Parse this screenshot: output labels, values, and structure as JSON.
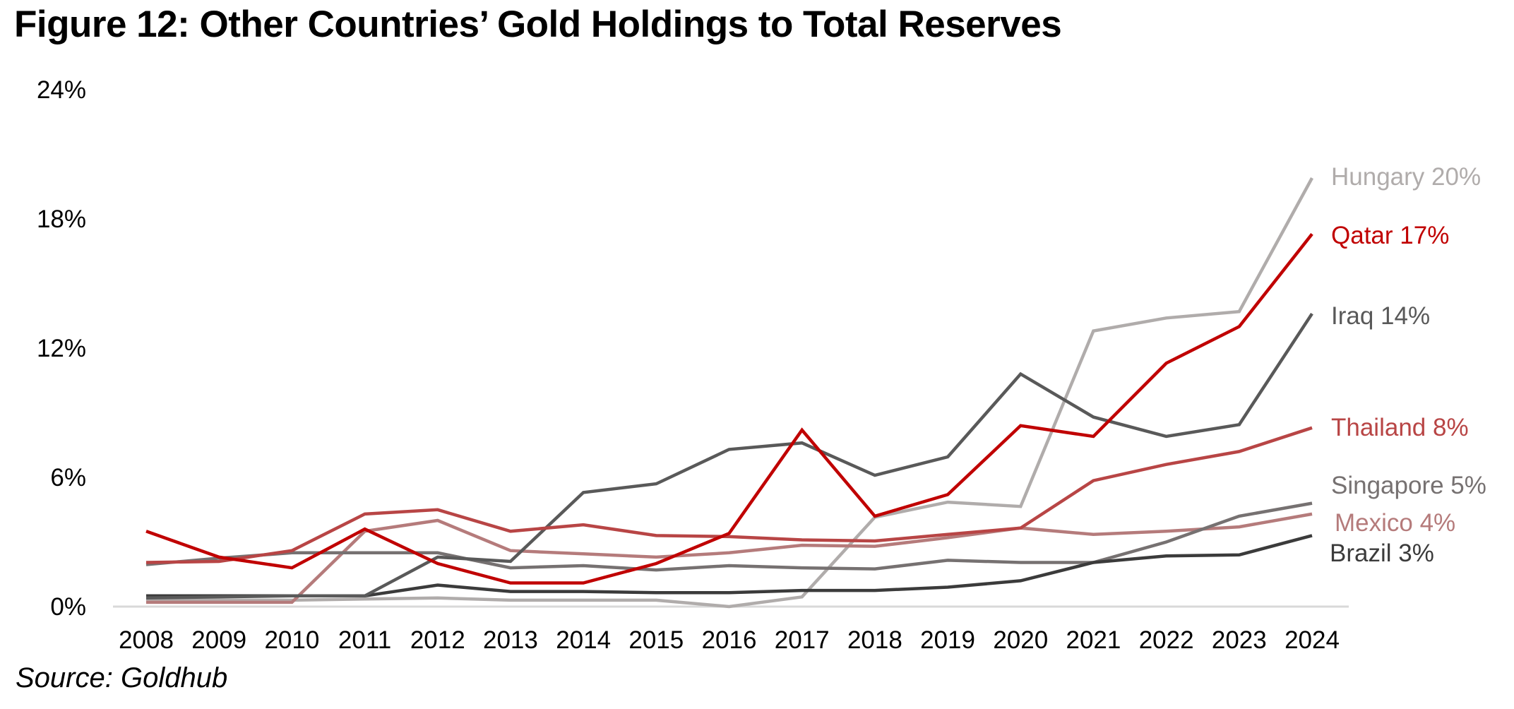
{
  "title": "Figure 12: Other Countries’ Gold Holdings to Total Reserves",
  "source": "Source: Goldhub",
  "chart_data": {
    "type": "line",
    "title": "Figure 12: Other Countries’ Gold Holdings to Total Reserves",
    "xlabel": "",
    "ylabel": "",
    "x": [
      "2008",
      "2009",
      "2010",
      "2011",
      "2012",
      "2013",
      "2014",
      "2015",
      "2016",
      "2017",
      "2018",
      "2019",
      "2020",
      "2021",
      "2022",
      "2023",
      "2024"
    ],
    "ylim": [
      0,
      24
    ],
    "yticks": [
      0,
      6,
      12,
      18,
      24
    ],
    "ytick_labels": [
      "0%",
      "6%",
      "12%",
      "18%",
      "24%"
    ],
    "grid": false,
    "legend": "end-of-line labels (right)",
    "series": [
      {
        "name": "Hungary",
        "end_label": "Hungary 20%",
        "color": "#b0acab",
        "values": [
          0.3,
          0.3,
          0.3,
          0.35,
          0.4,
          0.3,
          0.3,
          0.3,
          0.0,
          0.45,
          4.15,
          4.85,
          4.65,
          12.8,
          13.4,
          13.7,
          19.9
        ]
      },
      {
        "name": "Qatar",
        "end_label": "Qatar 17%",
        "color": "#c00000",
        "values": [
          3.5,
          2.3,
          1.8,
          3.6,
          2.0,
          1.1,
          1.1,
          2.0,
          3.4,
          8.2,
          4.2,
          5.2,
          8.4,
          7.9,
          11.3,
          13.0,
          17.3
        ]
      },
      {
        "name": "Iraq",
        "end_label": "Iraq 14%",
        "color": "#595959",
        "values": [
          0.4,
          0.45,
          0.5,
          0.5,
          2.3,
          2.1,
          5.3,
          5.7,
          7.3,
          7.6,
          6.1,
          6.95,
          10.8,
          8.8,
          7.9,
          8.45,
          13.6
        ]
      },
      {
        "name": "Thailand",
        "end_label": "Thailand 8%",
        "color": "#b84545",
        "values": [
          2.05,
          2.1,
          2.6,
          4.3,
          4.5,
          3.5,
          3.8,
          3.3,
          3.25,
          3.1,
          3.05,
          3.35,
          3.65,
          5.85,
          6.6,
          7.2,
          8.3
        ]
      },
      {
        "name": "Singapore",
        "end_label": "Singapore 5%",
        "color": "#767171",
        "values": [
          1.95,
          2.25,
          2.5,
          2.5,
          2.5,
          1.8,
          1.9,
          1.7,
          1.9,
          1.8,
          1.75,
          2.15,
          2.05,
          2.05,
          3.0,
          4.2,
          4.8
        ]
      },
      {
        "name": "Mexico",
        "end_label": "Mexico 4%",
        "color": "#b57b7b",
        "values": [
          0.2,
          0.2,
          0.2,
          3.5,
          4.0,
          2.6,
          2.45,
          2.3,
          2.5,
          2.85,
          2.8,
          3.2,
          3.65,
          3.35,
          3.5,
          3.7,
          4.3
        ]
      },
      {
        "name": "Brazil",
        "end_label": "Brazil 3%",
        "color": "#3b3b3b",
        "values": [
          0.5,
          0.5,
          0.5,
          0.5,
          1.0,
          0.7,
          0.7,
          0.65,
          0.65,
          0.75,
          0.75,
          0.9,
          1.2,
          2.05,
          2.35,
          2.4,
          3.3
        ]
      }
    ],
    "axis_color": "#d9d9d9"
  }
}
